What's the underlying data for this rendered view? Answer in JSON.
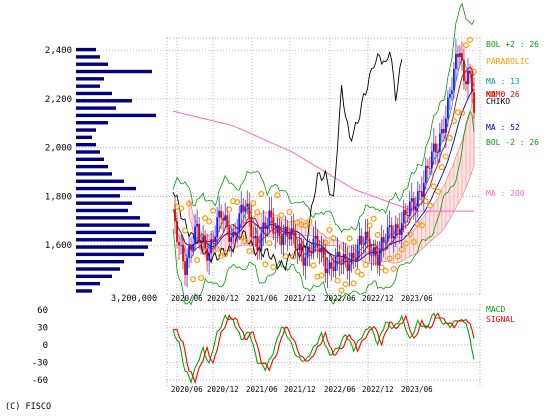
{
  "copyright": "(C) FISCO",
  "volume_label": "3,200,000",
  "colors": {
    "up": "#1a1aff",
    "down": "#e00000",
    "volume": "#000080",
    "bol": "#00a000",
    "parabolic": "#ff9900",
    "ma13": "#00a0a0",
    "ma26": "#e00000",
    "ma52": "#0000cc",
    "ma200": "#ff66cc",
    "chikou": "#000000",
    "kumo_red": "#ffdede",
    "kumo_gray": "#dddddd",
    "macd": "#00aa00",
    "signal": "#ff0000"
  },
  "chart_data": [
    {
      "type": "candlestick",
      "ylim": [
        1400,
        2450
      ],
      "yticks": [
        2400,
        2200,
        2000,
        1800,
        1600
      ],
      "ytick_labels": [
        "2,400",
        "2,200",
        "2,000",
        "1,800",
        "1,600"
      ],
      "xticks": [
        "2020/06",
        "2020/12",
        "2021/06",
        "2021/12",
        "2022/06",
        "2022/12",
        "2023/06"
      ],
      "grid": true,
      "legend": [
        {
          "label": "BOL +2 : 26",
          "color": "#00a000"
        },
        {
          "label": "PARABOLIC",
          "color": "#ff9900"
        },
        {
          "label": "MA : 13",
          "color": "#00a0a0"
        },
        {
          "label": "KUMO",
          "color": "#e00000"
        },
        {
          "label": "MA : 26",
          "color": "#e00000"
        },
        {
          "label": "CHIKO",
          "color": "#000000"
        },
        {
          "label": "MA : 52",
          "color": "#0000cc"
        },
        {
          "label": "BOL -2 : 26",
          "color": "#00a000"
        },
        {
          "label": "MA : 200",
          "color": "#ff66cc"
        }
      ],
      "close_anchors": [
        [
          0,
          1700
        ],
        [
          6,
          1530
        ],
        [
          12,
          1650
        ],
        [
          18,
          1580
        ],
        [
          24,
          1720
        ],
        [
          30,
          1640
        ],
        [
          36,
          1760
        ],
        [
          42,
          1600
        ],
        [
          48,
          1700
        ],
        [
          54,
          1650
        ],
        [
          60,
          1620
        ],
        [
          66,
          1560
        ],
        [
          72,
          1600
        ],
        [
          78,
          1510
        ],
        [
          84,
          1530
        ],
        [
          90,
          1560
        ],
        [
          96,
          1620
        ],
        [
          102,
          1560
        ],
        [
          108,
          1650
        ],
        [
          114,
          1700
        ],
        [
          120,
          1760
        ],
        [
          126,
          1900
        ],
        [
          132,
          2000
        ],
        [
          136,
          2150
        ],
        [
          140,
          2300
        ],
        [
          143,
          2400
        ],
        [
          145,
          2260
        ],
        [
          147,
          2350
        ],
        [
          150,
          2180
        ]
      ],
      "ma200_anchors": [
        [
          0,
          2150
        ],
        [
          30,
          2090
        ],
        [
          60,
          1980
        ],
        [
          90,
          1830
        ],
        [
          120,
          1740
        ],
        [
          150,
          1740
        ]
      ],
      "chikou_anchors": [
        [
          0,
          1820
        ],
        [
          10,
          1620
        ],
        [
          22,
          1540
        ],
        [
          34,
          1640
        ],
        [
          46,
          1560
        ],
        [
          56,
          1520
        ],
        [
          66,
          1600
        ],
        [
          72,
          1870
        ],
        [
          76,
          1900
        ],
        [
          80,
          1780
        ],
        [
          84,
          2230
        ],
        [
          88,
          2050
        ],
        [
          92,
          2100
        ],
        [
          96,
          2220
        ],
        [
          100,
          2360
        ],
        [
          103,
          2380
        ],
        [
          106,
          2320
        ],
        [
          108,
          2400
        ],
        [
          111,
          2220
        ],
        [
          114,
          2370
        ]
      ],
      "volume_by_price": [
        {
          "price": 1410,
          "volume": 0.2
        },
        {
          "price": 1440,
          "volume": 0.3
        },
        {
          "price": 1470,
          "volume": 0.45
        },
        {
          "price": 1500,
          "volume": 0.55
        },
        {
          "price": 1530,
          "volume": 0.6
        },
        {
          "price": 1560,
          "volume": 0.85
        },
        {
          "price": 1590,
          "volume": 0.9
        },
        {
          "price": 1620,
          "volume": 0.95
        },
        {
          "price": 1650,
          "volume": 1.0
        },
        {
          "price": 1680,
          "volume": 0.92
        },
        {
          "price": 1710,
          "volume": 0.8
        },
        {
          "price": 1740,
          "volume": 0.65
        },
        {
          "price": 1770,
          "volume": 0.7
        },
        {
          "price": 1800,
          "volume": 0.55
        },
        {
          "price": 1830,
          "volume": 0.75
        },
        {
          "price": 1860,
          "volume": 0.6
        },
        {
          "price": 1890,
          "volume": 0.45
        },
        {
          "price": 1920,
          "volume": 0.4
        },
        {
          "price": 1950,
          "volume": 0.35
        },
        {
          "price": 1980,
          "volume": 0.3
        },
        {
          "price": 2010,
          "volume": 0.25
        },
        {
          "price": 2040,
          "volume": 0.2
        },
        {
          "price": 2070,
          "volume": 0.25
        },
        {
          "price": 2100,
          "volume": 0.4
        },
        {
          "price": 2130,
          "volume": 1.05
        },
        {
          "price": 2160,
          "volume": 0.5
        },
        {
          "price": 2190,
          "volume": 0.7
        },
        {
          "price": 2220,
          "volume": 0.45
        },
        {
          "price": 2250,
          "volume": 0.3
        },
        {
          "price": 2280,
          "volume": 0.35
        },
        {
          "price": 2310,
          "volume": 0.95
        },
        {
          "price": 2340,
          "volume": 0.4
        },
        {
          "price": 2370,
          "volume": 0.3
        },
        {
          "price": 2400,
          "volume": 0.25
        }
      ]
    },
    {
      "type": "line",
      "ylim": [
        -70,
        70
      ],
      "yticks": [
        60,
        30,
        0,
        -30,
        -60
      ],
      "ytick_labels": [
        "60",
        "30",
        "0",
        "-30",
        "-60"
      ],
      "xticks": [
        "2020/06",
        "2020/12",
        "2021/06",
        "2021/12",
        "2022/06",
        "2022/12",
        "2023/06"
      ],
      "grid": true,
      "series": [
        {
          "name": "MACD",
          "color": "#00aa00",
          "anchors": [
            [
              0,
              25
            ],
            [
              3,
              5
            ],
            [
              6,
              -45
            ],
            [
              9,
              -62
            ],
            [
              12,
              -30
            ],
            [
              15,
              -5
            ],
            [
              18,
              -35
            ],
            [
              22,
              20
            ],
            [
              26,
              50
            ],
            [
              30,
              40
            ],
            [
              34,
              10
            ],
            [
              38,
              25
            ],
            [
              42,
              -30
            ],
            [
              46,
              -40
            ],
            [
              50,
              -10
            ],
            [
              54,
              30
            ],
            [
              58,
              10
            ],
            [
              62,
              -20
            ],
            [
              66,
              -30
            ],
            [
              70,
              -5
            ],
            [
              74,
              20
            ],
            [
              78,
              -20
            ],
            [
              82,
              -5
            ],
            [
              86,
              20
            ],
            [
              90,
              -10
            ],
            [
              94,
              15
            ],
            [
              98,
              35
            ],
            [
              102,
              0
            ],
            [
              106,
              40
            ],
            [
              110,
              30
            ],
            [
              114,
              45
            ],
            [
              118,
              10
            ],
            [
              122,
              40
            ],
            [
              126,
              25
            ],
            [
              130,
              55
            ],
            [
              134,
              40
            ],
            [
              138,
              30
            ],
            [
              142,
              45
            ],
            [
              146,
              40
            ],
            [
              150,
              -25
            ]
          ]
        },
        {
          "name": "SIGNAL",
          "color": "#ff0000",
          "lag": 2
        }
      ]
    }
  ]
}
